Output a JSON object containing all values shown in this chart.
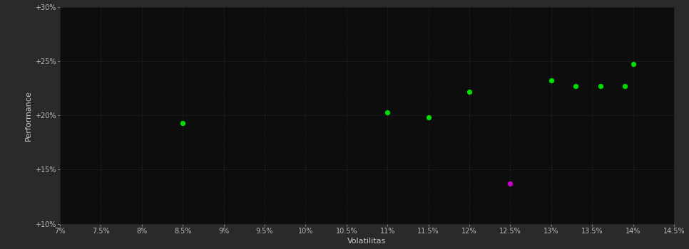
{
  "background_color": "#2a2a2a",
  "plot_bg_color": "#0d0d0d",
  "grid_color": "#555555",
  "xlabel": "Volatilitas",
  "ylabel": "Performance",
  "xlim": [
    0.07,
    0.145
  ],
  "ylim": [
    0.1,
    0.3
  ],
  "xticks": [
    0.07,
    0.075,
    0.08,
    0.085,
    0.09,
    0.095,
    0.1,
    0.105,
    0.11,
    0.115,
    0.12,
    0.125,
    0.13,
    0.135,
    0.14,
    0.145
  ],
  "yticks": [
    0.1,
    0.15,
    0.2,
    0.25,
    0.3
  ],
  "ytick_labels": [
    "+10%",
    "+15%",
    "+20%",
    "+25%",
    "+30%"
  ],
  "xtick_labels": [
    "7%",
    "7.5%",
    "8%",
    "8.5%",
    "9%",
    "9.5%",
    "10%",
    "10.5%",
    "11%",
    "11.5%",
    "12%",
    "12.5%",
    "13%",
    "13.5%",
    "14%",
    "14.5%"
  ],
  "green_points": [
    [
      0.085,
      0.193
    ],
    [
      0.11,
      0.203
    ],
    [
      0.115,
      0.198
    ],
    [
      0.12,
      0.222
    ],
    [
      0.13,
      0.232
    ],
    [
      0.133,
      0.227
    ],
    [
      0.136,
      0.227
    ],
    [
      0.139,
      0.227
    ],
    [
      0.14,
      0.247
    ]
  ],
  "magenta_points": [
    [
      0.125,
      0.137
    ]
  ],
  "point_size": 18,
  "green_color": "#00dd00",
  "magenta_color": "#cc00cc",
  "tick_color": "#bbbbbb",
  "label_color": "#cccccc",
  "grid_alpha": 0.6,
  "grid_linewidth": 0.5
}
